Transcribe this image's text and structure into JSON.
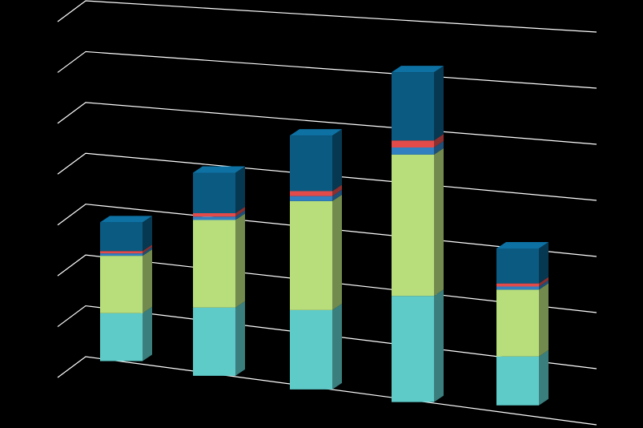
{
  "chart_data": {
    "type": "bar",
    "stacked": true,
    "three_d": true,
    "title": "",
    "xlabel": "",
    "ylabel": "",
    "grid": true,
    "legend": "none",
    "ylim": [
      0,
      7
    ],
    "gridlines": [
      0,
      1,
      2,
      3,
      4,
      5,
      6,
      7
    ],
    "categories": [
      "",
      "",
      "",
      "",
      ""
    ],
    "series": [
      {
        "color": "#5ecbc9",
        "values": [
          1.0,
          1.4,
          1.6,
          2.1,
          0.95
        ]
      },
      {
        "color": "#b8de7c",
        "values": [
          1.2,
          1.8,
          2.2,
          2.8,
          1.3
        ]
      },
      {
        "color": "#2f7fc1",
        "values": [
          0.05,
          0.07,
          0.1,
          0.14,
          0.06
        ]
      },
      {
        "color": "#e34b4b",
        "values": [
          0.05,
          0.07,
          0.1,
          0.14,
          0.06
        ]
      },
      {
        "color": "#0b5a82",
        "values": [
          0.6,
          0.83,
          1.12,
          1.35,
          0.68
        ]
      }
    ]
  }
}
